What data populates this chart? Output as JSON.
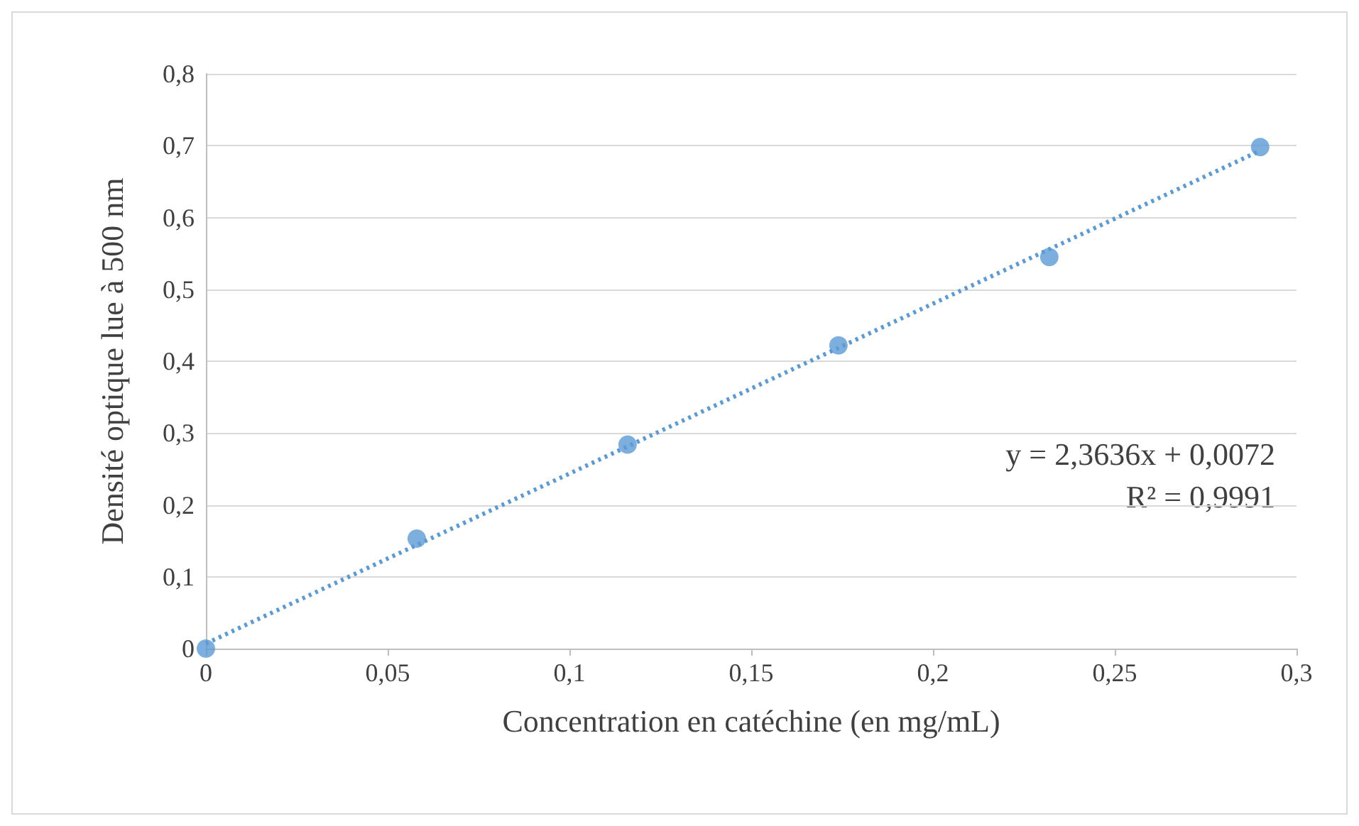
{
  "chart_data": {
    "type": "scatter",
    "xlabel": "Concentration en catéchine (en mg/mL)",
    "ylabel": "Densité optique lue à 500 nm",
    "series": [
      {
        "color": "#5b9bd5",
        "x": [
          0,
          0.058,
          0.116,
          0.174,
          0.232,
          0.29
        ],
        "values": [
          0,
          0.153,
          0.284,
          0.422,
          0.545,
          0.698
        ],
        "marker": "circle"
      },
      {
        "type": "line",
        "color": "#5b9bd5",
        "x": [
          0,
          0.29
        ],
        "values": [
          0.007,
          0.693
        ],
        "line_style": "dotted",
        "marker": "none"
      }
    ],
    "xlim": [
      0,
      0.3
    ],
    "xticks": [
      0,
      {
        "value": 0.05,
        "label": "0,05"
      },
      {
        "value": 0.1,
        "label": "0,1"
      },
      {
        "value": 0.15,
        "label": "0,15"
      },
      {
        "value": 0.2,
        "label": "0,2"
      },
      {
        "value": 0.25,
        "label": "0,25"
      },
      {
        "value": 0.3,
        "label": "0,3"
      }
    ],
    "ylim": [
      0,
      0.8
    ],
    "yticks": [
      0,
      {
        "value": 0.1,
        "label": "0,1"
      },
      {
        "value": 0.2,
        "label": "0,2"
      },
      {
        "value": 0.3,
        "label": "0,3"
      },
      {
        "value": 0.4,
        "label": "0,4"
      },
      {
        "value": 0.5,
        "label": "0,5"
      },
      {
        "value": 0.6,
        "label": "0,6"
      },
      {
        "value": 0.7,
        "label": "0,7"
      },
      {
        "value": 0.8,
        "label": "0,8"
      }
    ],
    "grid": "y",
    "annotations": [
      "y = 2,3636x + 0,0072",
      "R² = 0,9991"
    ]
  }
}
